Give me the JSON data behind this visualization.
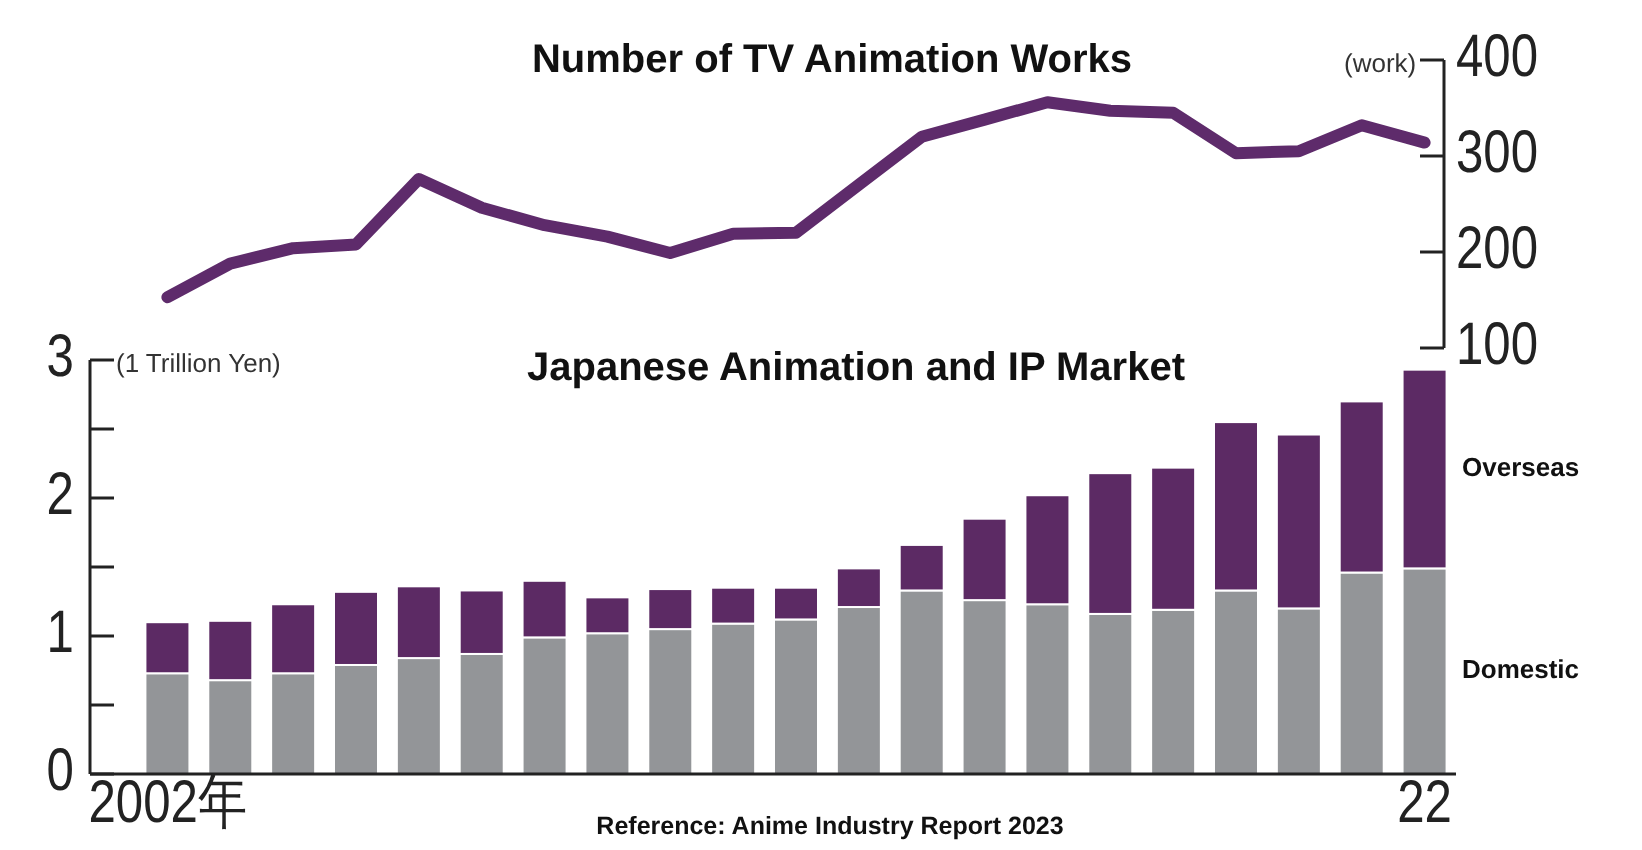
{
  "chart_data": [
    {
      "type": "line",
      "title": "Number of TV Animation Works",
      "ylabel": "(work)",
      "categories": [
        null,
        null,
        null,
        null,
        null,
        null,
        null,
        null,
        null,
        null,
        null,
        null,
        null,
        null,
        null,
        null,
        null,
        null,
        null,
        null,
        null
      ],
      "series": [
        {
          "color": "#5e2b6b",
          "values": [
            153,
            188,
            204,
            208,
            276,
            246,
            228,
            216,
            199,
            219,
            220,
            270,
            320,
            338,
            356,
            347,
            345,
            303,
            305,
            332,
            314
          ]
        }
      ],
      "ylim": [
        100,
        400
      ],
      "yticks": [
        100,
        200,
        300,
        400
      ],
      "tick_labels": "y",
      "line_style": "solid",
      "marker": "none"
    },
    {
      "type": "bar",
      "stacked": true,
      "title": "Japanese Animation and IP Market",
      "ylabel": "(1 Trillion Yen)",
      "categories": [
        "2002年",
        null,
        null,
        null,
        null,
        null,
        null,
        null,
        null,
        null,
        null,
        null,
        null,
        null,
        null,
        null,
        null,
        null,
        null,
        null,
        "22"
      ],
      "series": [
        {
          "name": "Domestic",
          "color": "#939598",
          "values": [
            0.73,
            0.68,
            0.73,
            0.79,
            0.84,
            0.87,
            0.99,
            1.02,
            1.05,
            1.09,
            1.12,
            1.21,
            1.33,
            1.26,
            1.23,
            1.16,
            1.19,
            1.33,
            1.2,
            1.46,
            1.49
          ]
        },
        {
          "name": "Overseas",
          "color": "#5c2a64",
          "values": [
            0.37,
            0.43,
            0.5,
            0.53,
            0.52,
            0.46,
            0.41,
            0.26,
            0.29,
            0.26,
            0.23,
            0.28,
            0.33,
            0.59,
            0.79,
            1.02,
            1.03,
            1.22,
            1.26,
            1.24,
            1.44
          ]
        }
      ],
      "ylim": [
        0,
        3
      ],
      "yticks": [
        0,
        {
          "value": 0.5,
          "label": null
        },
        1,
        {
          "value": 1.5,
          "label": null
        },
        2,
        {
          "value": 2.5,
          "label": null
        },
        3
      ],
      "annotations": [
        "Reference: Anime Industry Report 2023"
      ]
    }
  ]
}
